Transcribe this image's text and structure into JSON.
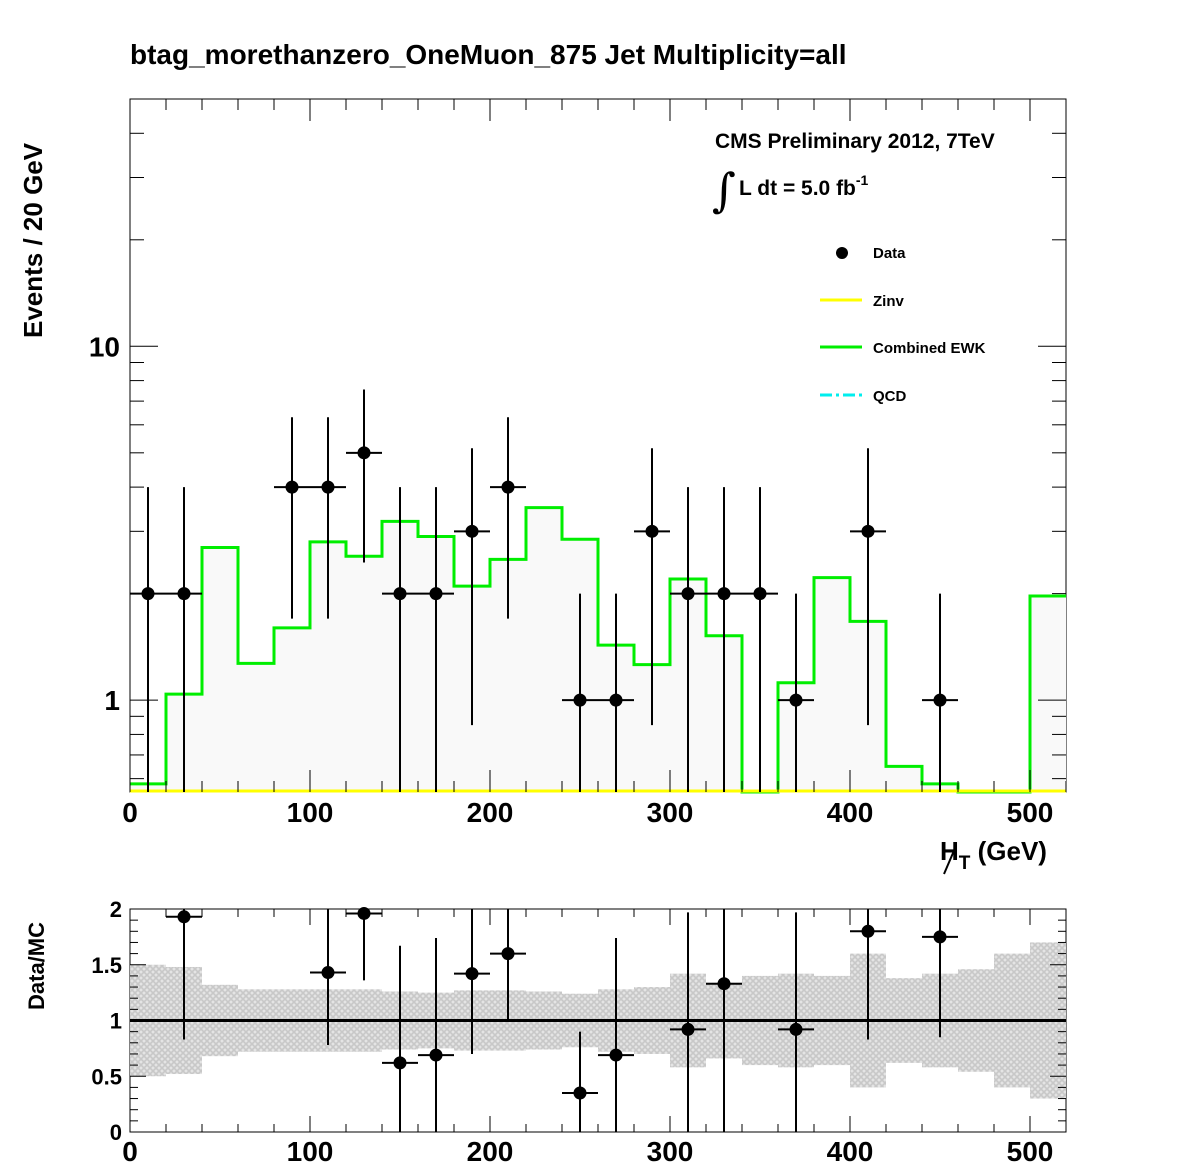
{
  "title": "btag_morethanzero_OneMuon_875    Jet Multiplicity=all",
  "annotation": {
    "line1": "CMS Preliminary 2012, 7TeV",
    "integral_symbol": "∫",
    "lumi_prefix": "L dt = 5.0 fb",
    "lumi_exponent": "-1"
  },
  "colors": {
    "data": "#000000",
    "zinv": "#ffff00",
    "ewk": "#00ee00",
    "qcd": "#00eeee",
    "uncertainty_band": "#c8c8c8",
    "ratio_line": "#000000"
  },
  "chart_data": [
    {
      "type": "histogram",
      "ylabel": "Events / 20 GeV",
      "xlabel_main": "H",
      "xlabel_sub": "T",
      "xlabel_unit": " (GeV)",
      "xlim": [
        0,
        520
      ],
      "ylim": [
        0.55,
        50
      ],
      "log_y": true,
      "grid": false,
      "x_ticks": [
        0,
        100,
        200,
        300,
        400,
        500
      ],
      "y_ticks": [
        1,
        10
      ],
      "bin_width": 20,
      "legend": {
        "placement": "top-right",
        "entries": [
          {
            "label": "Data",
            "style": "marker"
          },
          {
            "label": "Zinv",
            "style": "line",
            "color": "#ffff00"
          },
          {
            "label": "Combined EWK",
            "style": "line",
            "color": "#00ee00"
          },
          {
            "label": "QCD",
            "style": "dashdot",
            "color": "#00eeee"
          }
        ]
      },
      "series": [
        {
          "name": "Combined EWK",
          "kind": "step",
          "bin_edges": [
            0,
            20,
            40,
            60,
            80,
            100,
            120,
            140,
            160,
            180,
            200,
            220,
            240,
            260,
            280,
            300,
            320,
            340,
            360,
            380,
            400,
            420,
            440,
            460,
            480,
            500,
            520
          ],
          "values": [
            0.58,
            1.04,
            2.7,
            1.27,
            1.6,
            2.8,
            2.55,
            3.2,
            2.9,
            2.1,
            2.5,
            3.5,
            2.85,
            1.43,
            1.26,
            2.2,
            1.52,
            0.45,
            1.12,
            2.22,
            1.67,
            0.65,
            0.58,
            0.52,
            0.5,
            1.97
          ]
        },
        {
          "name": "Zinv",
          "kind": "step",
          "bin_edges": [
            0,
            520
          ],
          "values": [
            0.0
          ]
        },
        {
          "name": "Data",
          "kind": "points",
          "x": [
            10,
            30,
            90,
            110,
            130,
            150,
            170,
            190,
            210,
            250,
            270,
            290,
            310,
            330,
            350,
            370,
            410,
            450
          ],
          "y": [
            2,
            2,
            4,
            4,
            5,
            2,
            2,
            3,
            4,
            1,
            1,
            3,
            2,
            2,
            2,
            1,
            3,
            1
          ],
          "yerr_low": [
            2,
            2,
            2.3,
            2.3,
            2.55,
            2,
            2,
            2.15,
            2.3,
            1,
            1,
            2.15,
            2,
            2,
            2,
            1,
            2.15,
            1
          ],
          "yerr_high": [
            2,
            2,
            2.3,
            2.3,
            2.55,
            2,
            2,
            2.15,
            2.3,
            1,
            1,
            2.15,
            2,
            2,
            2,
            1,
            2.15,
            1
          ]
        }
      ]
    },
    {
      "type": "scatter",
      "ylabel": "Data/MC",
      "xlim": [
        0,
        520
      ],
      "ylim": [
        0,
        2
      ],
      "x_ticks": [
        0,
        100,
        200,
        300,
        400,
        500
      ],
      "y_ticks": [
        0,
        0.5,
        1,
        1.5,
        2
      ],
      "y_tick_labels": [
        "0",
        "0.5",
        "1",
        "1.5",
        "2"
      ],
      "reference_line": 1,
      "uncertainty_band": {
        "bin_edges": [
          0,
          20,
          40,
          60,
          80,
          100,
          120,
          140,
          160,
          180,
          200,
          220,
          240,
          260,
          280,
          300,
          320,
          340,
          360,
          380,
          400,
          420,
          440,
          460,
          480,
          500,
          520
        ],
        "half_width": [
          0.5,
          0.48,
          0.32,
          0.28,
          0.28,
          0.28,
          0.28,
          0.26,
          0.25,
          0.27,
          0.27,
          0.26,
          0.24,
          0.28,
          0.3,
          0.42,
          0.34,
          0.4,
          0.42,
          0.4,
          0.6,
          0.38,
          0.42,
          0.46,
          0.6,
          0.7
        ]
      },
      "series": [
        {
          "name": "Data/MC",
          "x": [
            30,
            110,
            130,
            150,
            170,
            190,
            210,
            250,
            270,
            310,
            330,
            370,
            410,
            450
          ],
          "y": [
            1.93,
            1.43,
            1.96,
            0.62,
            0.69,
            1.42,
            1.6,
            0.35,
            0.69,
            0.92,
            1.33,
            0.92,
            1.8,
            1.75
          ],
          "yerr_low": [
            1.1,
            0.65,
            0.6,
            0.62,
            0.69,
            0.72,
            0.6,
            0.35,
            0.69,
            0.92,
            1.33,
            0.92,
            0.97,
            0.9
          ],
          "yerr_high": [
            1.1,
            0.65,
            0.6,
            1.05,
            1.05,
            0.72,
            0.6,
            0.55,
            1.05,
            1.05,
            1.3,
            1.05,
            0.97,
            0.9
          ]
        }
      ]
    }
  ]
}
